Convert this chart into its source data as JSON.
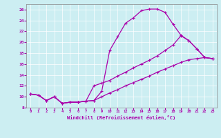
{
  "xlabel": "Windchill (Refroidissement éolien,°C)",
  "xlim": [
    -0.5,
    23.5
  ],
  "ylim": [
    8,
    27
  ],
  "xticks": [
    0,
    1,
    2,
    3,
    4,
    5,
    6,
    7,
    8,
    9,
    10,
    11,
    12,
    13,
    14,
    15,
    16,
    17,
    18,
    19,
    20,
    21,
    22,
    23
  ],
  "yticks": [
    8,
    10,
    12,
    14,
    16,
    18,
    20,
    22,
    24,
    26
  ],
  "bg_color": "#cceef2",
  "line_color": "#aa00aa",
  "curve1_x": [
    0,
    1,
    2,
    3,
    4,
    5,
    6,
    7,
    8,
    9,
    10,
    11,
    12,
    13,
    14,
    15,
    16,
    17,
    18,
    19,
    20,
    21,
    22,
    23
  ],
  "curve1_y": [
    10.5,
    10.3,
    9.3,
    10.0,
    8.8,
    9.0,
    9.0,
    9.2,
    9.3,
    11.0,
    18.5,
    21.0,
    23.5,
    24.5,
    25.8,
    26.1,
    26.1,
    25.5,
    23.3,
    21.3,
    20.3,
    18.8,
    17.2,
    17.0
  ],
  "curve2_x": [
    0,
    1,
    2,
    3,
    4,
    5,
    6,
    7,
    8,
    9,
    10,
    11,
    12,
    13,
    14,
    15,
    16,
    17,
    18,
    19,
    20,
    21,
    22,
    23
  ],
  "curve2_y": [
    10.5,
    10.3,
    9.3,
    10.0,
    8.8,
    9.0,
    9.0,
    9.2,
    12.0,
    12.5,
    13.0,
    13.8,
    14.5,
    15.3,
    16.0,
    16.7,
    17.5,
    18.5,
    19.5,
    21.2,
    20.3,
    18.8,
    17.2,
    17.0
  ],
  "curve3_x": [
    0,
    1,
    2,
    3,
    4,
    5,
    6,
    7,
    8,
    9,
    10,
    11,
    12,
    13,
    14,
    15,
    16,
    17,
    18,
    19,
    20,
    21,
    22,
    23
  ],
  "curve3_y": [
    10.5,
    10.3,
    9.3,
    10.0,
    8.8,
    9.0,
    9.0,
    9.2,
    9.3,
    10.0,
    10.7,
    11.3,
    12.0,
    12.6,
    13.2,
    13.8,
    14.5,
    15.1,
    15.7,
    16.3,
    16.8,
    17.0,
    17.2,
    17.0
  ]
}
